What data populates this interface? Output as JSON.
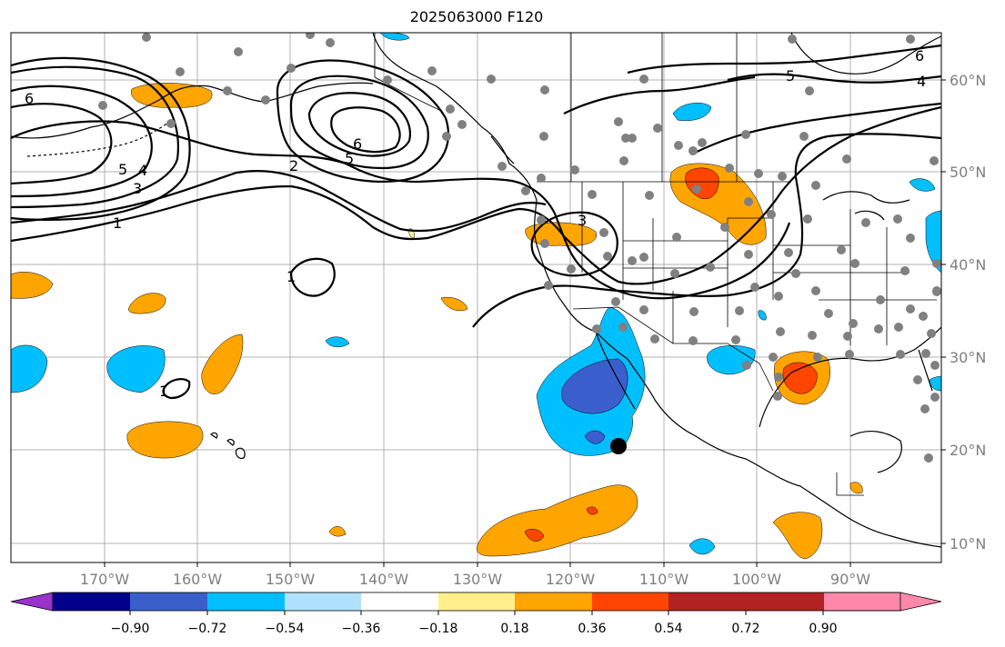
{
  "title": "2025063000 F120",
  "map": {
    "lat_labels": [
      "60°N",
      "50°N",
      "40°N",
      "30°N",
      "20°N",
      "10°N"
    ],
    "lon_labels": [
      "170°W",
      "160°W",
      "150°W",
      "140°W",
      "130°W",
      "120°W",
      "110°W",
      "100°W",
      "90°W"
    ],
    "contour_labels": [
      "6",
      "5",
      "4",
      "3",
      "1",
      "2",
      "5",
      "6",
      "3",
      "1",
      "1",
      "5",
      "4",
      "6"
    ]
  },
  "colorbar": {
    "colors": [
      "#9932cc",
      "#00008b",
      "#3a5fcd",
      "#00bfff",
      "#b0e2ff",
      "#ffffff",
      "#fff08c",
      "#ffa500",
      "#ff4500",
      "#b22222",
      "#ff88aa"
    ],
    "labels": [
      "−0.90",
      "−0.72",
      "−0.54",
      "−0.36",
      "−0.18",
      "0.18",
      "0.36",
      "0.54",
      "0.72",
      "0.90"
    ]
  }
}
